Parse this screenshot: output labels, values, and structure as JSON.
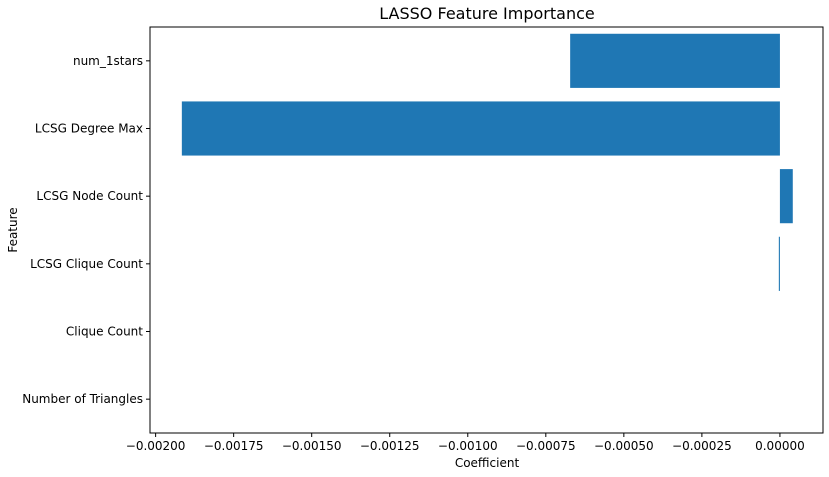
{
  "chart_data": {
    "type": "bar",
    "orientation": "horizontal",
    "title": "LASSO Feature Importance",
    "xlabel": "Coefficient",
    "ylabel": "Feature",
    "categories": [
      "num_1stars",
      "LCSG Degree Max",
      "LCSG Node Count",
      "LCSG Clique Count",
      "Clique Count",
      "Number of Triangles"
    ],
    "values": [
      -0.000672,
      -0.001916,
      4.12e-05,
      -3.5e-06,
      0,
      0
    ],
    "xlim": [
      -0.002018,
      0.000138
    ],
    "xticks": [
      -0.002,
      -0.00175,
      -0.0015,
      -0.00125,
      -0.001,
      -0.00075,
      -0.0005,
      -0.00025,
      0
    ],
    "xtick_labels": [
      "−0.00200",
      "−0.00175",
      "−0.00150",
      "−0.00125",
      "−0.00100",
      "−0.00075",
      "−0.00050",
      "−0.00025",
      "0.00000"
    ],
    "grid": false,
    "bar_color": "#1f77b4"
  }
}
